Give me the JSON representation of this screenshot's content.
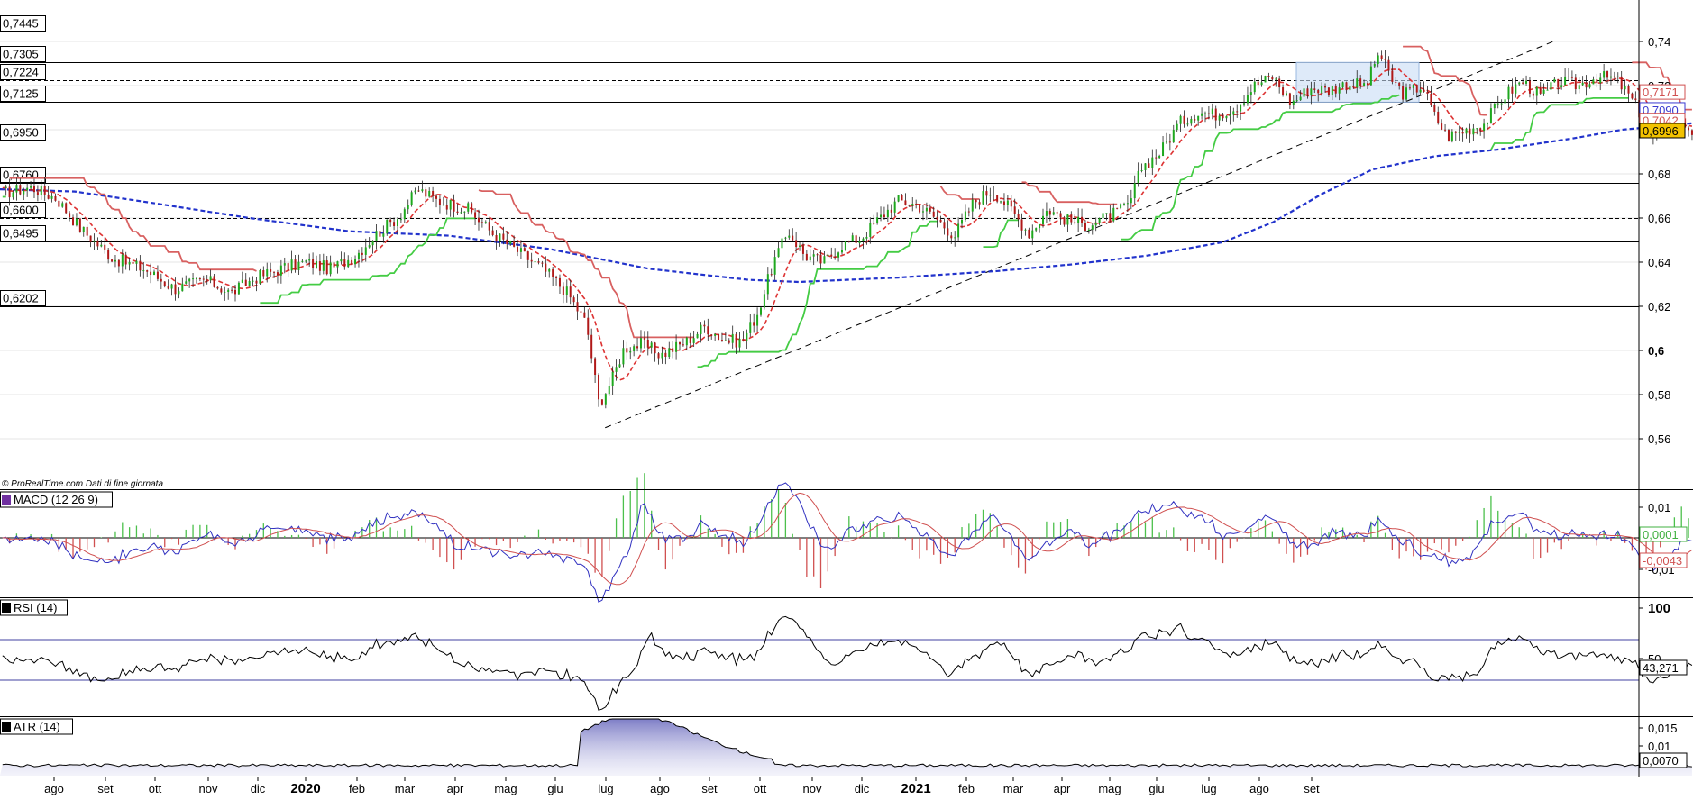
{
  "attribution": "© ProRealTime.com  Dati di fine giornata",
  "chart_data": {
    "type": "candlestick",
    "panels": [
      {
        "id": "price",
        "y_axis_ticks": [
          "0,74",
          "0,72",
          "0,7",
          "0,68",
          "0,66",
          "0,64",
          "0,62",
          "0,6",
          "0,58",
          "0,56"
        ],
        "y_axis_ticks_values": [
          0.74,
          0.72,
          0.7,
          0.68,
          0.66,
          0.64,
          0.62,
          0.6,
          0.58,
          0.56
        ],
        "ylim": [
          0.548,
          0.76
        ],
        "horizontal_levels": [
          {
            "label": "0,7445",
            "value": 0.7445,
            "style": "solid"
          },
          {
            "label": "0,7305",
            "value": 0.7305,
            "style": "solid"
          },
          {
            "label": "0,7224",
            "value": 0.7224,
            "style": "dashed"
          },
          {
            "label": "0,7125",
            "value": 0.7125,
            "style": "solid"
          },
          {
            "label": "0,6950",
            "value": 0.695,
            "style": "solid"
          },
          {
            "label": "0,6760",
            "value": 0.676,
            "style": "solid"
          },
          {
            "label": "0,6600",
            "value": 0.66,
            "style": "dashed"
          },
          {
            "label": "0,6495",
            "value": 0.6495,
            "style": "solid"
          },
          {
            "label": "0,6202",
            "value": 0.6202,
            "style": "solid"
          }
        ],
        "right_badges": [
          {
            "label": "0,7171",
            "value": 0.7171,
            "color": "#d05050"
          },
          {
            "label": "0,7090",
            "value": 0.709,
            "color": "#3a3ad0"
          },
          {
            "label": "0,7042",
            "value": 0.7042,
            "color": "#d05050"
          },
          {
            "label": "0,6996",
            "value": 0.6996,
            "color": "#000000",
            "bg": "#f2c200"
          }
        ],
        "close_path": [
          [
            0,
            0.671
          ],
          [
            25,
            0.674
          ],
          [
            45,
            0.669
          ],
          [
            65,
            0.655
          ],
          [
            90,
            0.642
          ],
          [
            115,
            0.637
          ],
          [
            140,
            0.628
          ],
          [
            165,
            0.632
          ],
          [
            185,
            0.626
          ],
          [
            205,
            0.633
          ],
          [
            225,
            0.637
          ],
          [
            245,
            0.64
          ],
          [
            265,
            0.637
          ],
          [
            285,
            0.643
          ],
          [
            300,
            0.652
          ],
          [
            320,
            0.661
          ],
          [
            335,
            0.673
          ],
          [
            350,
            0.668
          ],
          [
            375,
            0.664
          ],
          [
            395,
            0.653
          ],
          [
            415,
            0.645
          ],
          [
            435,
            0.637
          ],
          [
            455,
            0.626
          ],
          [
            470,
            0.612
          ],
          [
            480,
            0.576
          ],
          [
            490,
            0.586
          ],
          [
            500,
            0.601
          ],
          [
            515,
            0.603
          ],
          [
            530,
            0.598
          ],
          [
            550,
            0.604
          ],
          [
            565,
            0.611
          ],
          [
            580,
            0.605
          ],
          [
            595,
            0.604
          ],
          [
            608,
            0.618
          ],
          [
            620,
            0.64
          ],
          [
            632,
            0.654
          ],
          [
            645,
            0.643
          ],
          [
            660,
            0.64
          ],
          [
            675,
            0.648
          ],
          [
            690,
            0.651
          ],
          [
            705,
            0.66
          ],
          [
            720,
            0.668
          ],
          [
            735,
            0.666
          ],
          [
            750,
            0.66
          ],
          [
            765,
            0.652
          ],
          [
            780,
            0.667
          ],
          [
            795,
            0.673
          ],
          [
            810,
            0.664
          ],
          [
            825,
            0.653
          ],
          [
            840,
            0.664
          ],
          [
            855,
            0.659
          ],
          [
            870,
            0.657
          ],
          [
            890,
            0.661
          ],
          [
            905,
            0.666
          ],
          [
            915,
            0.683
          ],
          [
            930,
            0.69
          ],
          [
            945,
            0.703
          ],
          [
            960,
            0.708
          ],
          [
            975,
            0.707
          ],
          [
            990,
            0.71
          ],
          [
            1005,
            0.72
          ],
          [
            1020,
            0.724
          ],
          [
            1035,
            0.712
          ],
          [
            1050,
            0.719
          ],
          [
            1065,
            0.718
          ],
          [
            1080,
            0.721
          ],
          [
            1095,
            0.72
          ],
          [
            1105,
            0.735
          ],
          [
            1115,
            0.723
          ],
          [
            1125,
            0.716
          ],
          [
            1140,
            0.72
          ],
          [
            1150,
            0.706
          ],
          [
            1160,
            0.697
          ],
          [
            1175,
            0.7
          ],
          [
            1190,
            0.703
          ],
          [
            1205,
            0.715
          ],
          [
            1220,
            0.722
          ],
          [
            1235,
            0.715
          ],
          [
            1250,
            0.722
          ],
          [
            1265,
            0.72
          ],
          [
            1280,
            0.724
          ],
          [
            1295,
            0.723
          ],
          [
            1305,
            0.716
          ],
          [
            1315,
            0.707
          ],
          [
            1325,
            0.696
          ],
          [
            1335,
            0.701
          ],
          [
            1345,
            0.705
          ],
          [
            1357,
            0.699
          ]
        ],
        "long_ma": [
          [
            0,
            0.673
          ],
          [
            60,
            0.672
          ],
          [
            120,
            0.667
          ],
          [
            200,
            0.66
          ],
          [
            280,
            0.654
          ],
          [
            360,
            0.652
          ],
          [
            440,
            0.646
          ],
          [
            520,
            0.637
          ],
          [
            600,
            0.632
          ],
          [
            640,
            0.631
          ],
          [
            720,
            0.633
          ],
          [
            800,
            0.636
          ],
          [
            860,
            0.639
          ],
          [
            920,
            0.643
          ],
          [
            980,
            0.649
          ],
          [
            1020,
            0.658
          ],
          [
            1060,
            0.671
          ],
          [
            1100,
            0.682
          ],
          [
            1150,
            0.688
          ],
          [
            1200,
            0.691
          ],
          [
            1260,
            0.696
          ],
          [
            1300,
            0.7
          ],
          [
            1357,
            0.703
          ]
        ],
        "trendline": [
          [
            485,
            0.565
          ],
          [
            1245,
            0.74
          ]
        ]
      },
      {
        "id": "macd",
        "label": "MACD (12 26 9)",
        "y_axis_ticks": [
          "0,01",
          "-0,01"
        ],
        "right_badges": [
          {
            "label": "0,0001",
            "color": "#40b040"
          },
          {
            "label": "-0,0043",
            "color": "#d05050"
          }
        ]
      },
      {
        "id": "rsi",
        "label": "RSI (14)",
        "y_axis_ticks": [
          "100",
          "50"
        ],
        "right_badges": [
          {
            "label": "43,271",
            "color": "#000000"
          }
        ]
      },
      {
        "id": "atr",
        "label": "ATR (14)",
        "y_axis_ticks": [
          "0,015",
          "0,01"
        ],
        "right_badges": [
          {
            "label": "0,0070",
            "color": "#000000"
          }
        ]
      }
    ],
    "x_axis_labels": [
      {
        "label": "ago",
        "x": 60
      },
      {
        "label": "set",
        "x": 117
      },
      {
        "label": "ott",
        "x": 172
      },
      {
        "label": "nov",
        "x": 231
      },
      {
        "label": "dic",
        "x": 286
      },
      {
        "label": "2020",
        "x": 339,
        "bold": true
      },
      {
        "label": "feb",
        "x": 396
      },
      {
        "label": "mar",
        "x": 449
      },
      {
        "label": "apr",
        "x": 505
      },
      {
        "label": "mag",
        "x": 561
      },
      {
        "label": "giu",
        "x": 616
      },
      {
        "label": "lug",
        "x": 672
      },
      {
        "label": "ago",
        "x": 732
      },
      {
        "label": "set",
        "x": 787
      },
      {
        "label": "ott",
        "x": 843
      },
      {
        "label": "nov",
        "x": 901
      },
      {
        "label": "dic",
        "x": 956
      },
      {
        "label": "2021",
        "x": 1016,
        "bold": true
      },
      {
        "label": "feb",
        "x": 1072
      },
      {
        "label": "mar",
        "x": 1124
      },
      {
        "label": "apr",
        "x": 1178
      },
      {
        "label": "mag",
        "x": 1231
      },
      {
        "label": "giu",
        "x": 1283
      },
      {
        "label": "lug",
        "x": 1341
      },
      {
        "label": "ago",
        "x": 1397
      },
      {
        "label": "set",
        "x": 1455
      }
    ]
  }
}
